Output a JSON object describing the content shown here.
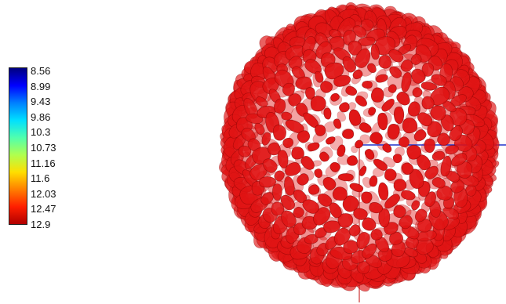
{
  "colorbar": {
    "labels": [
      "8.56",
      "8.99",
      "9.43",
      "9.86",
      "10.3",
      "10.73",
      "11.16",
      "11.6",
      "12.03",
      "12.47",
      "12.9"
    ],
    "gradient_stops": [
      "#00007f",
      "#0000ff",
      "#007fff",
      "#00dfff",
      "#4fffaf",
      "#afff4f",
      "#ffdf00",
      "#ff7f00",
      "#ff1f00",
      "#b00000"
    ]
  },
  "render": {
    "object": "spherical particle isosurface",
    "surface_color": "#e01414",
    "axes": {
      "x_color": "#2233cc",
      "y_color": "#cc3333"
    }
  }
}
